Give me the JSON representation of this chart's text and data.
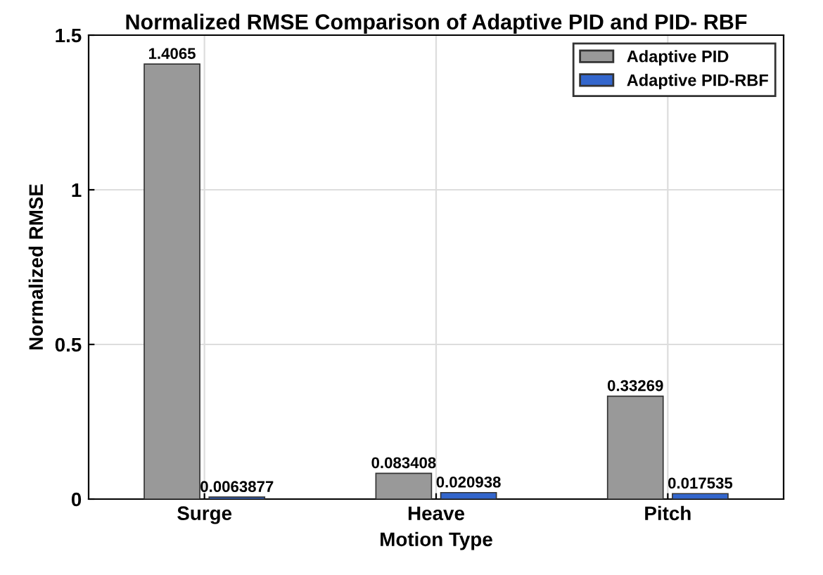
{
  "chart_data": {
    "type": "bar",
    "title": "Normalized RMSE Comparison of Adaptive PID and PID- RBF",
    "xlabel": "Motion Type",
    "ylabel": "Normalized RMSE",
    "categories": [
      "Surge",
      "Heave",
      "Pitch"
    ],
    "series": [
      {
        "name": "Adaptive PID",
        "color": "#999999",
        "values": [
          1.4065,
          0.083408,
          0.33269
        ]
      },
      {
        "name": "Adaptive PID-RBF",
        "color": "#3366cc",
        "values": [
          0.0063877,
          0.020938,
          0.017535
        ]
      }
    ],
    "ylim": [
      0,
      1.5
    ],
    "yticks": [
      0,
      0.5,
      1,
      1.5
    ],
    "grid": true,
    "legend": "top right",
    "data_labels": true
  }
}
